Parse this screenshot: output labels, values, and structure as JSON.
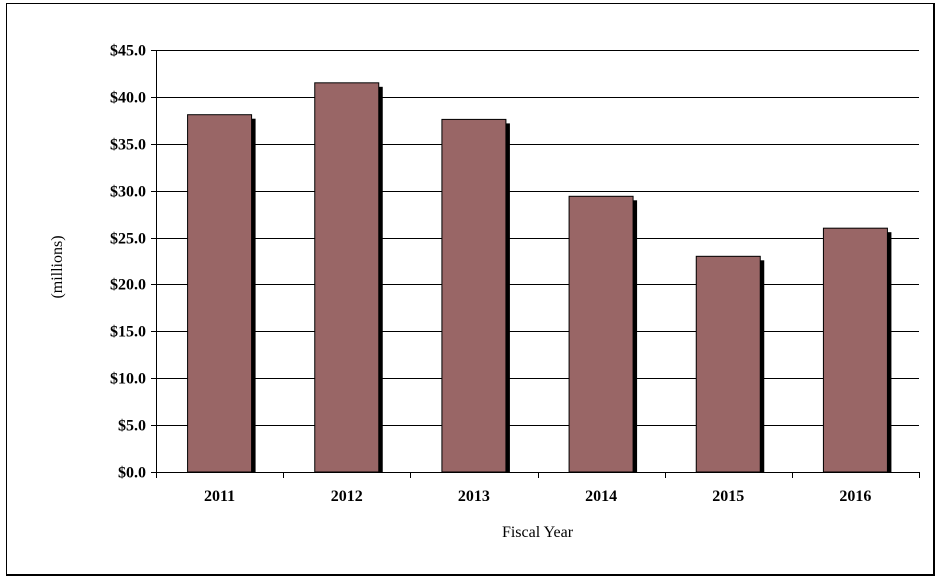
{
  "chart_data": {
    "type": "bar",
    "categories": [
      "2011",
      "2012",
      "2013",
      "2014",
      "2015",
      "2016"
    ],
    "values": [
      38.1,
      41.5,
      37.6,
      29.4,
      23.0,
      26.0
    ],
    "title": "",
    "xlabel": "Fiscal Year",
    "ylabel": "(millions)",
    "ylim": [
      0,
      45
    ],
    "yticks": [
      0,
      5,
      10,
      15,
      20,
      25,
      30,
      35,
      40,
      45
    ],
    "ytick_labels": [
      "$0.0",
      "$5.0",
      "$10.0",
      "$15.0",
      "$20.0",
      "$25.0",
      "$30.0",
      "$35.0",
      "$40.0",
      "$45.0"
    ],
    "grid": true,
    "legend": "none",
    "colors": {
      "bar": "#996666",
      "shadow": "#000000",
      "grid": "#000000"
    }
  }
}
